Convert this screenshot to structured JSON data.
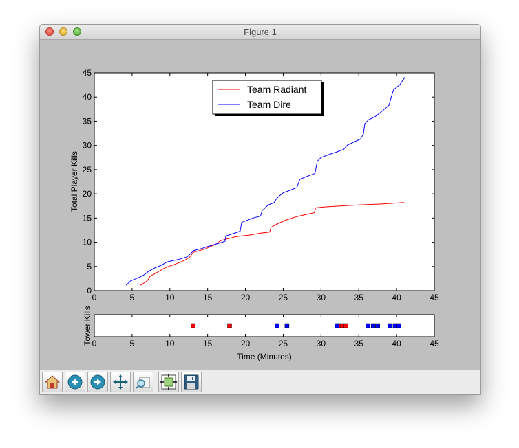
{
  "window": {
    "title": "Figure 1"
  },
  "toolbar": {
    "buttons": [
      {
        "name": "home-icon"
      },
      {
        "name": "back-icon"
      },
      {
        "name": "forward-icon"
      },
      {
        "name": "pan-icon"
      },
      {
        "name": "zoom-icon"
      },
      {
        "name": "configure-subplots-icon"
      },
      {
        "name": "save-icon"
      }
    ]
  },
  "chart_data": [
    {
      "type": "line",
      "title": "",
      "xlabel": "",
      "ylabel": "Total Player Kills",
      "xlim": [
        0,
        45
      ],
      "ylim": [
        0,
        45
      ],
      "xticks": [
        0,
        5,
        10,
        15,
        20,
        25,
        30,
        35,
        40,
        45
      ],
      "yticks": [
        0,
        5,
        10,
        15,
        20,
        25,
        30,
        35,
        40,
        45
      ],
      "legend": "top-center",
      "grid": false,
      "series": [
        {
          "name": "Team Radiant",
          "color": "#ff0000",
          "x": [
            6.1,
            6.8,
            7.1,
            7.4,
            8.0,
            8.7,
            9.1,
            9.8,
            10.6,
            11.4,
            12.0,
            12.6,
            13.1,
            14.0,
            14.8,
            15.5,
            16.0,
            16.7,
            17.3,
            17.9,
            18.6,
            19.4,
            20.6,
            22.0,
            23.2,
            23.4,
            24.1,
            25.2,
            26.8,
            28.2,
            29.1,
            29.3,
            30.5,
            32.5,
            35.0,
            38.0,
            41.0
          ],
          "y": [
            1.1,
            1.8,
            2.2,
            3.0,
            3.5,
            4.1,
            4.5,
            5.0,
            5.4,
            5.9,
            6.3,
            6.9,
            7.9,
            8.3,
            8.7,
            9.2,
            9.5,
            10.3,
            10.6,
            10.8,
            11.1,
            11.3,
            11.5,
            11.9,
            12.1,
            13.1,
            13.7,
            14.5,
            15.3,
            15.8,
            16.1,
            17.1,
            17.3,
            17.5,
            17.7,
            17.9,
            18.2
          ]
        },
        {
          "name": "Team Dire",
          "color": "#0000ff",
          "x": [
            4.2,
            4.8,
            5.4,
            6.0,
            6.6,
            7.2,
            8.0,
            8.8,
            9.6,
            10.4,
            11.3,
            12.3,
            12.7,
            13.2,
            14.2,
            15.0,
            15.8,
            16.5,
            17.3,
            17.4,
            18.8,
            19.3,
            19.5,
            21.0,
            22.0,
            22.2,
            23.0,
            23.8,
            24.1,
            24.5,
            25.0,
            26.0,
            26.8,
            27.2,
            28.1,
            29.2,
            29.5,
            30.0,
            31.0,
            32.0,
            33.0,
            33.5,
            34.5,
            35.2,
            35.6,
            35.8,
            36.3,
            37.2,
            38.0,
            39.0,
            39.3,
            39.6,
            40.0,
            40.4,
            40.8,
            41.1
          ],
          "y": [
            1.1,
            2.0,
            2.4,
            2.8,
            3.3,
            4.0,
            4.7,
            5.2,
            5.9,
            6.2,
            6.5,
            7.0,
            7.6,
            8.3,
            8.7,
            9.1,
            9.5,
            9.8,
            10.2,
            11.3,
            12.0,
            12.3,
            14.1,
            15.0,
            15.4,
            16.5,
            17.7,
            18.2,
            19.0,
            19.6,
            20.2,
            20.8,
            21.3,
            23.0,
            23.6,
            24.2,
            26.7,
            27.5,
            28.1,
            28.6,
            29.2,
            30.1,
            30.8,
            31.3,
            32.3,
            34.5,
            35.3,
            36.0,
            37.0,
            38.3,
            40.0,
            41.5,
            42.0,
            42.5,
            43.4,
            44.1
          ]
        }
      ]
    },
    {
      "type": "scatter",
      "title": "",
      "xlabel": "Time (Minutes)",
      "ylabel": "Tower Kills",
      "xlim": [
        0,
        45
      ],
      "xticks": [
        0,
        5,
        10,
        15,
        20,
        25,
        30,
        35,
        40,
        45
      ],
      "marker": "square",
      "series": [
        {
          "name": "",
          "color": "#ff0000",
          "x": [
            13.1,
            17.9,
            32.3,
            32.8,
            33.3
          ]
        },
        {
          "name": "",
          "color": "#0000ff",
          "x": [
            24.2,
            25.5,
            32.1,
            36.2,
            36.9,
            37.5,
            39.1,
            39.8,
            40.3
          ]
        }
      ]
    }
  ]
}
